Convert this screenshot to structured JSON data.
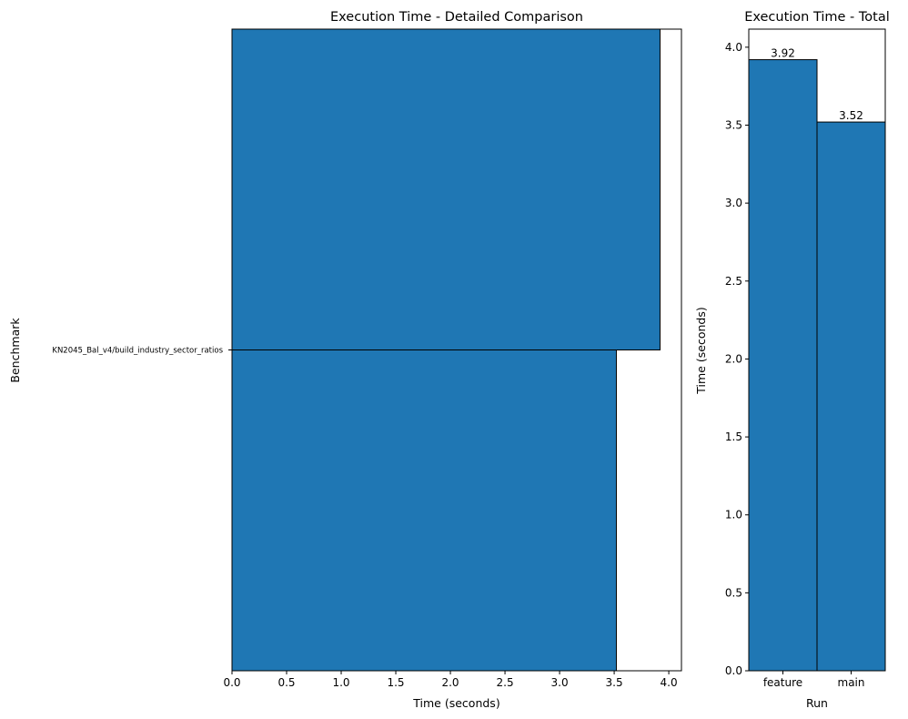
{
  "colors": {
    "bar_fill": "#1f77b4",
    "bar_edge": "#000000",
    "background": "#ffffff"
  },
  "chart_data": [
    {
      "type": "bar",
      "orientation": "horizontal",
      "title": "Execution Time - Detailed Comparison",
      "xlabel": "Time (seconds)",
      "ylabel": "Benchmark",
      "categories": [
        "KN2045_Bal_v4/build_industry_sector_ratios"
      ],
      "series": [
        {
          "values": [
            3.92
          ]
        },
        {
          "values": [
            3.52
          ]
        }
      ],
      "xlim": [
        0,
        4.116
      ],
      "xticks": [
        0.0,
        0.5,
        1.0,
        1.5,
        2.0,
        2.5,
        3.0,
        3.5,
        4.0
      ],
      "xtick_labels": [
        "0.0",
        "0.5",
        "1.0",
        "1.5",
        "2.0",
        "2.5",
        "3.0",
        "3.5",
        "4.0"
      ],
      "grid": false,
      "legend": "none"
    },
    {
      "type": "bar",
      "orientation": "vertical",
      "title": "Execution Time - Total",
      "xlabel": "Run",
      "ylabel": "Time (seconds)",
      "categories": [
        "feature",
        "main"
      ],
      "values": [
        3.92,
        3.52
      ],
      "data_labels": [
        "3.92",
        "3.52"
      ],
      "ylim": [
        0,
        4.116
      ],
      "yticks": [
        0.0,
        0.5,
        1.0,
        1.5,
        2.0,
        2.5,
        3.0,
        3.5,
        4.0
      ],
      "ytick_labels": [
        "0.0",
        "0.5",
        "1.0",
        "1.5",
        "2.0",
        "2.5",
        "3.0",
        "3.5",
        "4.0"
      ],
      "grid": false,
      "legend": "none"
    }
  ]
}
